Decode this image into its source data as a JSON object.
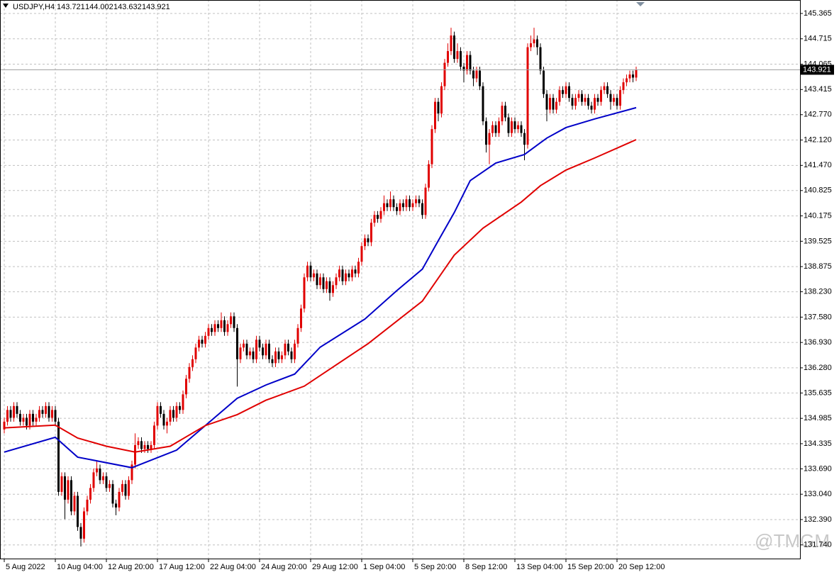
{
  "chart_data": {
    "type": "candlestick",
    "title": "USDJPY,H4",
    "watermark": "@TMGM",
    "up_color": "#e00000",
    "down_color": "#000000",
    "grid": true,
    "ylim": [
      131.39,
      145.71
    ],
    "yticks": [
      145.365,
      144.715,
      144.065,
      143.415,
      {
        "value": 142.77,
        "label": "142.770"
      },
      {
        "value": 142.12,
        "label": "142.120"
      },
      {
        "value": 141.47,
        "label": "141.470"
      },
      140.825,
      140.175,
      139.525,
      138.875,
      {
        "value": 138.23,
        "label": "138.230"
      },
      {
        "value": 137.58,
        "label": "137.580"
      },
      {
        "value": 136.93,
        "label": "136.930"
      },
      {
        "value": 136.28,
        "label": "136.280"
      },
      135.635,
      134.985,
      134.335,
      {
        "value": 133.69,
        "label": "133.690"
      },
      {
        "value": 133.04,
        "label": "133.040"
      },
      {
        "value": 132.39,
        "label": "132.390"
      },
      {
        "value": 131.74,
        "label": "131.740"
      }
    ],
    "xticks": [
      {
        "value": 0,
        "label": "5 Aug 2022"
      },
      {
        "value": 16,
        "label": "10 Aug 04:00"
      },
      {
        "value": 32,
        "label": "12 Aug 20:00"
      },
      {
        "value": 48,
        "label": "17 Aug 12:00"
      },
      {
        "value": 64,
        "label": "22 Aug 04:00"
      },
      {
        "value": 80,
        "label": "24 Aug 20:00"
      },
      {
        "value": 96,
        "label": "29 Aug 12:00"
      },
      {
        "value": 112,
        "label": "1 Sep 04:00"
      },
      {
        "value": 128,
        "label": "5 Sep 20:00"
      },
      {
        "value": 144,
        "label": "8 Sep 12:00"
      },
      {
        "value": 160,
        "label": "13 Sep 04:00"
      },
      {
        "value": 176,
        "label": "15 Sep 20:00"
      },
      {
        "value": 192,
        "label": "20 Sep 12:00"
      }
    ],
    "open": [
      134.7,
      134.9,
      135.2,
      135.0,
      135.3,
      135.1,
      134.9,
      135.0,
      134.8,
      135.1,
      134.9,
      135.0,
      135.2,
      135.1,
      135.3,
      135.0,
      135.2,
      134.9,
      133.1,
      133.5,
      132.9,
      133.4,
      132.6,
      133.0,
      132.2,
      131.9,
      132.6,
      132.9,
      133.2,
      133.6,
      133.7,
      133.4,
      133.5,
      133.2,
      133.3,
      132.8,
      132.7,
      133.1,
      133.3,
      133.0,
      133.4,
      133.8,
      134.3,
      134.4,
      134.2,
      134.3,
      134.2,
      134.3,
      134.8,
      135.3,
      135.1,
      134.8,
      134.9,
      135.2,
      135.0,
      135.3,
      135.2,
      135.6,
      136.0,
      136.3,
      136.5,
      136.8,
      137.0,
      136.9,
      137.1,
      137.3,
      137.2,
      137.4,
      137.3,
      137.5,
      137.2,
      137.4,
      137.6,
      137.3,
      136.5,
      136.8,
      136.9,
      136.6,
      136.7,
      136.5,
      137.0,
      136.8,
      136.6,
      136.9,
      136.5,
      136.4,
      136.7,
      136.5,
      136.6,
      136.9,
      136.7,
      136.5,
      136.9,
      137.3,
      137.8,
      138.6,
      138.9,
      138.6,
      138.7,
      138.4,
      138.6,
      138.3,
      138.5,
      138.2,
      138.4,
      138.6,
      138.8,
      138.5,
      138.7,
      138.6,
      138.8,
      138.7,
      139.0,
      139.4,
      139.6,
      139.5,
      140.0,
      140.2,
      140.1,
      140.3,
      140.5,
      140.4,
      140.6,
      140.4,
      140.3,
      140.5,
      140.4,
      140.6,
      140.4,
      140.5,
      140.6,
      140.5,
      140.2,
      140.9,
      141.5,
      142.4,
      143.1,
      142.8,
      143.5,
      144.1,
      144.4,
      144.8,
      144.2,
      144.4,
      144.0,
      143.9,
      144.3,
      143.9,
      143.7,
      143.9,
      143.5,
      142.6,
      142.0,
      142.3,
      142.5,
      142.3,
      142.6,
      143.0,
      142.7,
      142.3,
      142.6,
      142.4,
      142.5,
      142.3,
      142.0,
      144.5,
      144.6,
      144.7,
      144.5,
      143.9,
      143.3,
      142.9,
      143.2,
      142.9,
      143.1,
      143.4,
      143.3,
      143.5,
      143.2,
      143.0,
      143.2,
      143.3,
      143.1,
      143.2,
      143.0,
      142.9,
      143.2,
      143.1,
      143.4,
      143.5,
      143.3,
      143.1,
      143.2,
      143.0,
      143.4,
      143.6,
      143.7,
      143.8,
      143.721
    ],
    "high": [
      135.0,
      135.3,
      135.3,
      135.4,
      135.4,
      135.2,
      135.1,
      135.1,
      135.2,
      135.2,
      135.1,
      135.3,
      135.3,
      135.4,
      135.4,
      135.3,
      135.3,
      135.0,
      133.6,
      133.6,
      133.5,
      133.5,
      133.1,
      133.1,
      132.3,
      132.7,
      133.0,
      133.3,
      133.7,
      133.9,
      133.8,
      133.6,
      133.6,
      133.4,
      133.4,
      132.9,
      133.2,
      133.4,
      133.4,
      133.5,
      133.9,
      134.6,
      134.5,
      134.5,
      134.4,
      134.4,
      134.4,
      134.9,
      135.4,
      135.4,
      135.2,
      135.0,
      135.3,
      135.3,
      135.4,
      135.4,
      135.7,
      136.1,
      136.4,
      136.6,
      136.9,
      137.1,
      137.1,
      137.2,
      137.4,
      137.4,
      137.5,
      137.5,
      137.7,
      137.6,
      137.5,
      137.7,
      137.7,
      137.4,
      136.9,
      137.0,
      137.0,
      136.8,
      136.8,
      137.1,
      137.1,
      136.9,
      137.0,
      137.0,
      136.6,
      136.8,
      136.8,
      136.7,
      137.0,
      137.0,
      136.8,
      137.0,
      137.4,
      137.9,
      138.7,
      139.0,
      139.0,
      138.8,
      138.8,
      138.7,
      138.7,
      138.6,
      138.6,
      138.5,
      138.7,
      138.9,
      138.9,
      138.8,
      138.8,
      138.9,
      138.9,
      139.1,
      139.5,
      139.7,
      139.7,
      140.1,
      140.3,
      140.3,
      140.4,
      140.7,
      140.6,
      140.8,
      140.7,
      140.5,
      140.6,
      140.6,
      140.7,
      140.7,
      140.6,
      140.7,
      140.7,
      140.6,
      141.0,
      141.6,
      142.5,
      143.2,
      143.2,
      143.6,
      144.2,
      144.6,
      145.0,
      144.9,
      144.6,
      144.5,
      144.1,
      144.4,
      144.4,
      144.0,
      144.0,
      144.0,
      143.6,
      142.7,
      142.4,
      142.6,
      142.6,
      142.7,
      143.1,
      143.1,
      142.8,
      142.7,
      142.7,
      142.6,
      142.6,
      142.4,
      144.6,
      144.8,
      145.0,
      144.8,
      144.6,
      144.0,
      143.4,
      143.3,
      143.3,
      143.2,
      143.5,
      143.5,
      143.6,
      143.6,
      143.3,
      143.3,
      143.4,
      143.4,
      143.3,
      143.3,
      143.1,
      143.3,
      143.3,
      143.5,
      143.6,
      143.6,
      143.4,
      143.3,
      143.3,
      143.5,
      143.7,
      143.8,
      143.9,
      143.9,
      144.002
    ],
    "low": [
      134.6,
      134.8,
      134.9,
      134.9,
      135.0,
      134.8,
      134.8,
      134.7,
      134.7,
      134.8,
      134.8,
      134.9,
      135.0,
      135.0,
      134.9,
      134.9,
      134.8,
      133.0,
      133.0,
      132.4,
      132.8,
      132.5,
      132.5,
      132.1,
      131.7,
      131.8,
      132.5,
      132.8,
      133.1,
      133.5,
      133.3,
      133.3,
      133.1,
      133.1,
      132.7,
      132.5,
      132.6,
      133.0,
      132.9,
      132.9,
      133.3,
      133.7,
      134.2,
      134.1,
      134.1,
      134.1,
      134.1,
      134.2,
      134.7,
      135.0,
      134.7,
      134.6,
      134.8,
      134.9,
      134.9,
      135.1,
      135.1,
      135.5,
      135.9,
      136.2,
      136.4,
      136.7,
      136.8,
      136.8,
      137.0,
      137.1,
      137.1,
      137.2,
      137.2,
      137.1,
      137.1,
      137.3,
      137.2,
      135.8,
      136.4,
      136.7,
      136.5,
      136.5,
      136.4,
      136.4,
      136.7,
      136.5,
      136.5,
      136.4,
      136.3,
      136.3,
      136.4,
      136.4,
      136.5,
      136.6,
      136.4,
      136.4,
      136.8,
      137.2,
      137.7,
      138.5,
      138.5,
      138.5,
      138.3,
      138.3,
      138.2,
      138.2,
      138.0,
      138.1,
      138.3,
      138.5,
      138.4,
      138.4,
      138.5,
      138.5,
      138.6,
      138.6,
      138.9,
      139.3,
      139.4,
      139.4,
      139.9,
      140.0,
      140.0,
      140.2,
      140.3,
      140.3,
      140.3,
      140.2,
      140.2,
      140.3,
      140.3,
      140.3,
      140.3,
      140.4,
      140.4,
      140.1,
      140.1,
      140.8,
      141.4,
      142.3,
      142.6,
      142.7,
      143.4,
      144.0,
      144.3,
      144.1,
      144.1,
      143.9,
      143.6,
      143.8,
      143.8,
      143.5,
      143.6,
      143.4,
      142.5,
      141.8,
      141.5,
      142.2,
      142.2,
      142.2,
      142.5,
      142.6,
      142.2,
      142.2,
      142.3,
      142.3,
      142.2,
      141.6,
      141.9,
      144.4,
      144.5,
      144.3,
      143.8,
      143.2,
      142.6,
      142.8,
      142.8,
      142.8,
      143.0,
      143.2,
      143.2,
      143.1,
      142.9,
      142.9,
      143.1,
      143.0,
      143.0,
      142.9,
      142.8,
      142.8,
      143.0,
      143.0,
      143.3,
      143.2,
      142.9,
      143.0,
      142.9,
      142.9,
      143.3,
      143.5,
      143.6,
      143.6,
      143.632
    ],
    "close": [
      134.9,
      135.2,
      135.0,
      135.3,
      135.1,
      134.9,
      135.0,
      134.8,
      135.1,
      134.9,
      135.0,
      135.2,
      135.1,
      135.3,
      135.0,
      135.2,
      134.9,
      133.1,
      133.5,
      132.9,
      133.4,
      132.6,
      133.0,
      132.2,
      131.9,
      132.6,
      132.9,
      133.2,
      133.6,
      133.7,
      133.4,
      133.5,
      133.2,
      133.3,
      132.8,
      132.7,
      133.1,
      133.3,
      133.0,
      133.4,
      133.8,
      134.3,
      134.4,
      134.2,
      134.3,
      134.2,
      134.3,
      134.8,
      135.3,
      135.1,
      134.8,
      134.9,
      135.2,
      135.0,
      135.3,
      135.2,
      135.6,
      136.0,
      136.3,
      136.5,
      136.8,
      137.0,
      136.9,
      137.1,
      137.3,
      137.2,
      137.4,
      137.3,
      137.5,
      137.2,
      137.4,
      137.6,
      137.3,
      136.5,
      136.8,
      136.9,
      136.6,
      136.7,
      136.5,
      137.0,
      136.8,
      136.6,
      136.9,
      136.5,
      136.4,
      136.7,
      136.5,
      136.6,
      136.9,
      136.7,
      136.5,
      136.9,
      137.3,
      137.8,
      138.6,
      138.9,
      138.6,
      138.7,
      138.4,
      138.6,
      138.3,
      138.5,
      138.2,
      138.4,
      138.6,
      138.8,
      138.5,
      138.7,
      138.6,
      138.8,
      138.7,
      139.0,
      139.4,
      139.6,
      139.5,
      140.0,
      140.2,
      140.1,
      140.3,
      140.5,
      140.4,
      140.6,
      140.4,
      140.3,
      140.5,
      140.4,
      140.6,
      140.4,
      140.5,
      140.6,
      140.5,
      140.2,
      140.9,
      141.5,
      142.4,
      143.1,
      142.8,
      143.5,
      144.1,
      144.4,
      144.8,
      144.2,
      144.4,
      144.0,
      143.9,
      144.3,
      143.9,
      143.7,
      143.9,
      143.5,
      142.6,
      142.0,
      142.3,
      142.5,
      142.3,
      142.6,
      143.0,
      142.7,
      142.3,
      142.6,
      142.4,
      142.5,
      142.3,
      142.0,
      144.5,
      144.6,
      144.7,
      144.5,
      143.9,
      143.3,
      142.9,
      143.2,
      142.9,
      143.1,
      143.4,
      143.3,
      143.5,
      143.2,
      143.0,
      143.2,
      143.3,
      143.1,
      143.2,
      143.0,
      142.9,
      143.2,
      143.1,
      143.4,
      143.5,
      143.3,
      143.1,
      143.2,
      143.0,
      143.4,
      143.6,
      143.7,
      143.8,
      143.721,
      143.921
    ],
    "ma_lines": [
      {
        "color": "#0000c8",
        "x": [
          0,
          16,
          23,
          40,
          54,
          63,
          73,
          82,
          91,
          99,
          113,
          123,
          131,
          136,
          141,
          146,
          154,
          163,
          170,
          176,
          185,
          198
        ],
        "values": [
          134.12,
          134.5,
          133.99,
          133.72,
          134.17,
          134.8,
          135.5,
          135.84,
          136.12,
          136.81,
          137.53,
          138.26,
          138.81,
          139.54,
          140.26,
          141.08,
          141.53,
          141.75,
          142.17,
          142.44,
          142.66,
          142.95
        ]
      },
      {
        "color": "#e00000",
        "x": [
          0,
          16,
          23,
          32,
          41,
          52,
          63,
          73,
          82,
          94,
          114,
          131,
          141,
          150,
          162,
          168,
          176,
          185,
          198
        ],
        "values": [
          134.74,
          134.81,
          134.48,
          134.27,
          134.12,
          134.27,
          134.8,
          135.08,
          135.45,
          135.81,
          136.9,
          137.99,
          139.17,
          139.86,
          140.53,
          140.95,
          141.35,
          141.66,
          142.13
        ]
      }
    ]
  }
}
